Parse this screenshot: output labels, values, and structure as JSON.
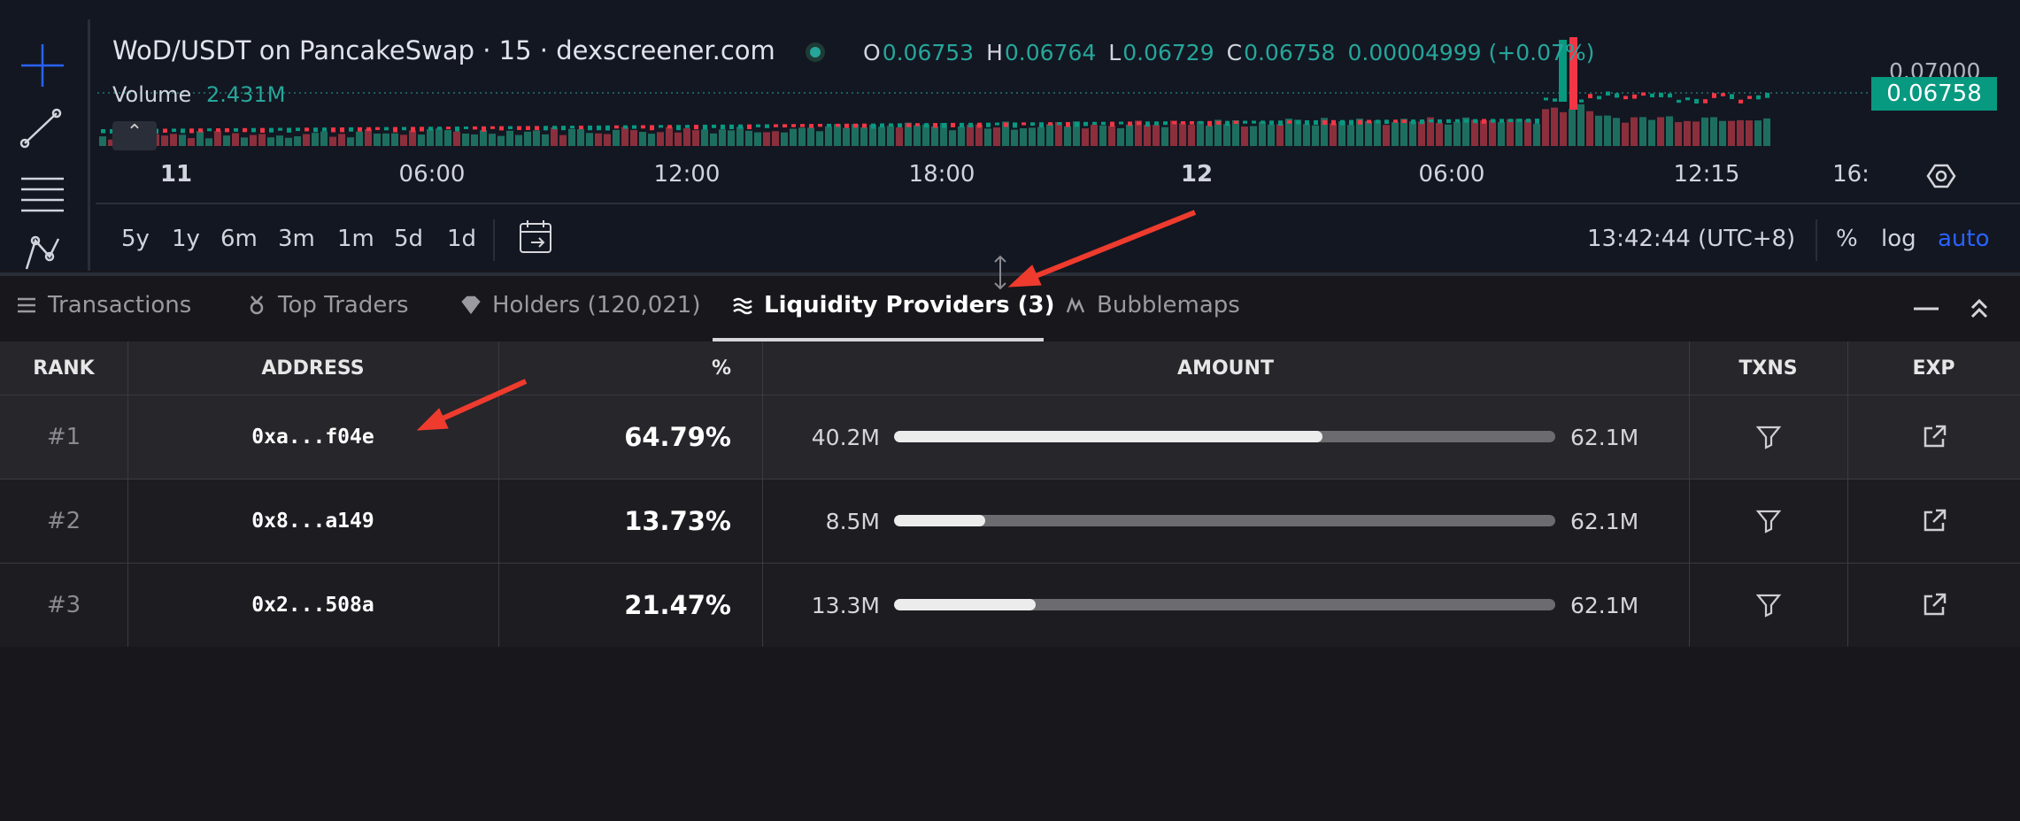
{
  "chart_header": {
    "title": "WoD/USDT on PancakeSwap · 15 · dexscreener.com",
    "ohlc": [
      {
        "key": "O",
        "value": "0.06753"
      },
      {
        "key": "H",
        "value": "0.06764"
      },
      {
        "key": "L",
        "value": "0.06729"
      },
      {
        "key": "C",
        "value": "0.06758"
      }
    ],
    "change": "0.00004999 (+0.07%)",
    "volume_label": "Volume",
    "volume": "2.431M",
    "price_scale": "0.07000",
    "last_price": "0.06758"
  },
  "time_axis": [
    "11",
    "06:00",
    "12:00",
    "18:00",
    "12",
    "06:00",
    "12:15",
    "16:"
  ],
  "ranges": [
    "5y",
    "1y",
    "6m",
    "3m",
    "1m",
    "5d",
    "1d"
  ],
  "clock": "13:42:44 (UTC+8)",
  "scale_options": [
    "%",
    "log",
    "auto"
  ],
  "tabs": [
    "Transactions",
    "Top Traders",
    "Holders (120,021)",
    "Liquidity Providers (3)",
    "Bubblemaps"
  ],
  "table": {
    "columns": [
      "RANK",
      "ADDRESS",
      "%",
      "AMOUNT",
      "TXNS",
      "EXP"
    ],
    "rows": [
      {
        "rank": "#1",
        "address": "0xa...f04e",
        "percent": {
          "value": 64.79,
          "label": "64.79%"
        },
        "amount": "40.2M",
        "total": "62.1M"
      },
      {
        "rank": "#2",
        "address": "0x8...a149",
        "percent": {
          "value": 13.73,
          "label": "13.73%"
        },
        "amount": "8.5M",
        "total": "62.1M"
      },
      {
        "rank": "#3",
        "address": "0x2...508a",
        "percent": {
          "value": 21.47,
          "label": "21.47%"
        },
        "amount": "13.3M",
        "total": "62.1M"
      }
    ]
  }
}
